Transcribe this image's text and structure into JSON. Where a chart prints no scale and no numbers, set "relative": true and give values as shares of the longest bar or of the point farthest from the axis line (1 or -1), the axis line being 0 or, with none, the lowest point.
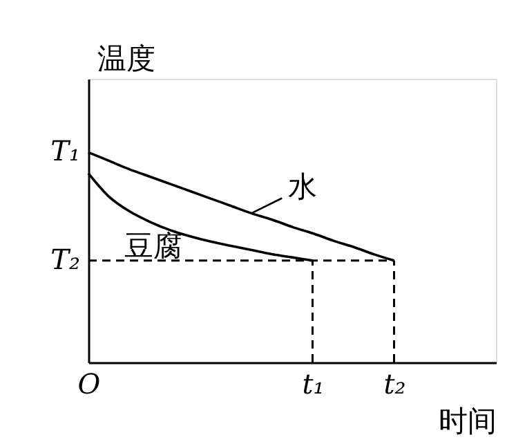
{
  "chart_data": {
    "type": "line",
    "relative": true,
    "xlabel": "时间",
    "ylabel": "温度",
    "categories": [
      "O",
      null,
      null,
      null,
      null,
      null,
      null,
      null,
      null,
      null,
      null,
      "t₁",
      null,
      null,
      null,
      "t₂",
      null,
      null,
      null,
      null,
      null
    ],
    "grid": false,
    "marker": "none",
    "annotations": [
      "T₁"
    ],
    "ref_lines": [
      {
        "axis": "y",
        "value": 0.485,
        "label": "T₂",
        "color": "#000000",
        "line_style": "dashed"
      },
      {
        "axis": "x",
        "value": "t₁",
        "color": "#000000",
        "line_style": "dashed"
      },
      {
        "axis": "x",
        "value": "t₂",
        "color": "#000000",
        "line_style": "dashed"
      }
    ],
    "series": [
      {
        "name": "水",
        "color": "#000000",
        "values": [
          1.0,
          0.96,
          0.92,
          0.885,
          0.85,
          0.815,
          0.78,
          0.745,
          0.71,
          0.68,
          0.645,
          0.615,
          0.58,
          0.55,
          0.515,
          0.485,
          null,
          null,
          null,
          null,
          null
        ]
      },
      {
        "name": "豆腐",
        "color": "#000000",
        "values": [
          0.9,
          0.79,
          0.72,
          0.67,
          0.63,
          0.6,
          0.575,
          0.555,
          0.535,
          0.515,
          0.5,
          0.485,
          null,
          null,
          null,
          null,
          null,
          null,
          null,
          null,
          null
        ]
      }
    ]
  }
}
